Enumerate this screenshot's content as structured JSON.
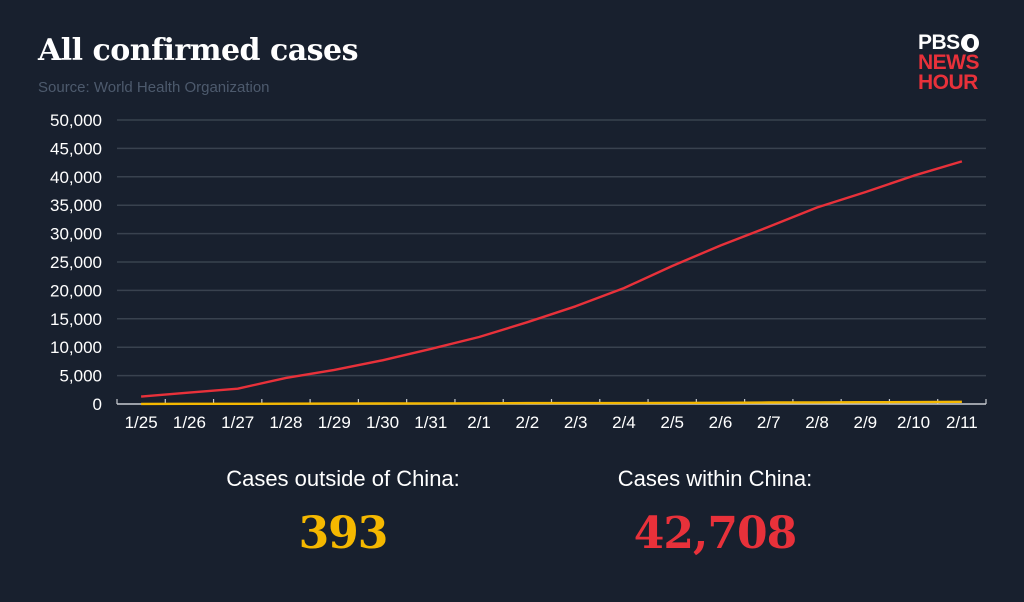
{
  "header": {
    "title": "All confirmed cases",
    "source": "Source: World Health Organization"
  },
  "logo": {
    "line1": "PBS",
    "line2": "NEWS",
    "line3": "HOUR"
  },
  "colors": {
    "background": "#18202e",
    "within_china": "#e8313a",
    "outside_china": "#f5b800",
    "grid": "#39424f",
    "axis": "#c8cbd0",
    "source_text": "#4d5a6d"
  },
  "summary": {
    "outside": {
      "label": "Cases outside of China:",
      "value": "393"
    },
    "within": {
      "label": "Cases within China:",
      "value": "42,708"
    }
  },
  "chart_data": {
    "type": "line",
    "title": "All confirmed cases",
    "subtitle": "Source: World Health Organization",
    "xlabel": "",
    "ylabel": "",
    "ylim": [
      0,
      50000
    ],
    "yticks": [
      0,
      5000,
      10000,
      15000,
      20000,
      25000,
      30000,
      35000,
      40000,
      45000,
      50000
    ],
    "ytick_labels": [
      "0",
      "5,000",
      "10,000",
      "15,000",
      "20,000",
      "25,000",
      "30,000",
      "35,000",
      "40,000",
      "45,000",
      "50,000"
    ],
    "grid": true,
    "legend": "none (totals shown below chart)",
    "categories": [
      "1/25",
      "1/26",
      "1/27",
      "1/28",
      "1/29",
      "1/30",
      "1/31",
      "2/1",
      "2/2",
      "2/3",
      "2/4",
      "2/5",
      "2/6",
      "2/7",
      "2/8",
      "2/9",
      "2/10",
      "2/11"
    ],
    "series": [
      {
        "name": "Cases within China",
        "color": "#e8313a",
        "values": [
          1300,
          2000,
          2700,
          4600,
          6000,
          7700,
          9700,
          11800,
          14400,
          17200,
          20400,
          24300,
          27900,
          31200,
          34600,
          37300,
          40200,
          42708
        ]
      },
      {
        "name": "Cases outside of China",
        "color": "#f5b800",
        "values": [
          20,
          30,
          40,
          55,
          70,
          80,
          100,
          130,
          150,
          150,
          160,
          190,
          210,
          260,
          290,
          310,
          340,
          393
        ]
      }
    ]
  }
}
